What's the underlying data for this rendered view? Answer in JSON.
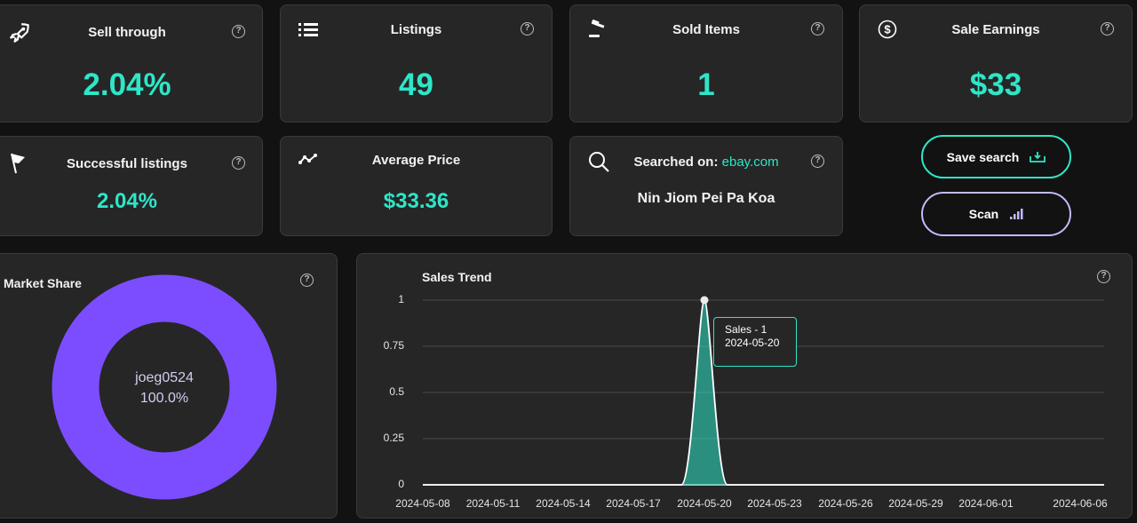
{
  "cards": {
    "sell_through": {
      "title": "Sell through",
      "value": "2.04%"
    },
    "listings": {
      "title": "Listings",
      "value": "49"
    },
    "sold_items": {
      "title": "Sold Items",
      "value": "1"
    },
    "sale_earnings": {
      "title": "Sale Earnings",
      "value": "$33"
    },
    "successful_listings": {
      "title": "Successful listings",
      "value": "2.04%"
    },
    "average_price": {
      "title": "Average Price",
      "value": "$33.36"
    },
    "searched_on": {
      "title": "Searched on:",
      "site": "ebay.com",
      "query": "Nin Jiom Pei Pa Koa"
    }
  },
  "help_glyph": "?",
  "buttons": {
    "save_search": "Save search",
    "scan": "Scan"
  },
  "market_share": {
    "title": "Market Share",
    "seller": "joeg0524",
    "percent": "100.0%",
    "color": "#7c4dff"
  },
  "chart_data": {
    "type": "area",
    "title": "Sales Trend",
    "x": [
      "2024-05-08",
      "2024-05-11",
      "2024-05-14",
      "2024-05-17",
      "2024-05-20",
      "2024-05-23",
      "2024-05-26",
      "2024-05-29",
      "2024-06-01",
      "2024-06-06"
    ],
    "x_tick_labels": [
      "2024-05-08",
      "2024-05-11",
      "2024-05-14",
      "2024-05-17",
      "2024-05-20",
      "2024-05-23",
      "2024-05-26",
      "2024-05-29",
      "2024-06-01",
      "2024-06-06"
    ],
    "y_tick_labels": [
      "1",
      "0.75",
      "0.5",
      "0.25",
      "0"
    ],
    "series": [
      {
        "values": [
          0,
          0,
          0,
          0,
          1,
          0,
          0,
          0,
          0,
          0
        ]
      }
    ],
    "ylim": [
      0,
      1
    ],
    "grid": true,
    "color": "#2ee6c8",
    "tooltip": {
      "line1": "Sales - 1",
      "line2": "2024-05-20"
    }
  }
}
